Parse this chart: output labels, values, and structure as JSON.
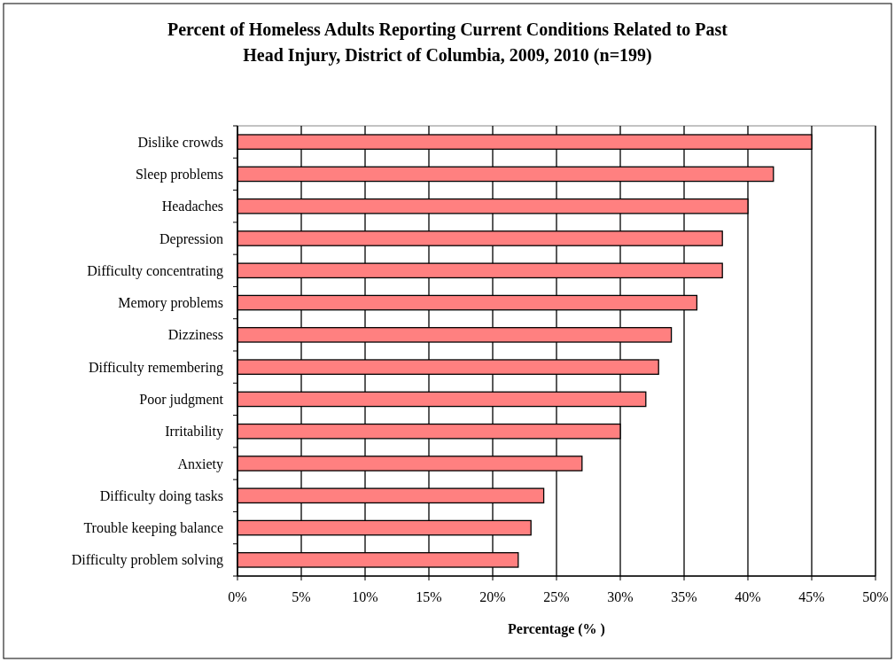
{
  "chart_data": {
    "type": "bar",
    "orientation": "horizontal",
    "title": "Percent of Homeless Adults Reporting Current Conditions Related to Past Head Injury, District of Columbia, 2009, 2010 (n=199)",
    "xlabel": "Percentage (% )",
    "categories": [
      "Dislike crowds",
      "Sleep problems",
      "Headaches",
      "Depression",
      "Difficulty concentrating",
      "Memory problems",
      "Dizziness",
      "Difficulty remembering",
      "Poor judgment",
      "Irritability",
      "Anxiety",
      "Difficulty doing tasks",
      "Trouble keeping balance",
      "Difficulty problem solving"
    ],
    "values": [
      45,
      42,
      40,
      38,
      38,
      36,
      34,
      33,
      32,
      30,
      27,
      24,
      23,
      22
    ],
    "color": "#ff8080",
    "xlim": [
      0,
      50
    ],
    "xticks": [
      {
        "value": 0,
        "label": "0%"
      },
      {
        "value": 5,
        "label": "5%"
      },
      {
        "value": 10,
        "label": "10%"
      },
      {
        "value": 15,
        "label": "15%"
      },
      {
        "value": 20,
        "label": "20%"
      },
      {
        "value": 25,
        "label": "25%"
      },
      {
        "value": 30,
        "label": "30%"
      },
      {
        "value": 35,
        "label": "35%"
      },
      {
        "value": 40,
        "label": "40%"
      },
      {
        "value": 45,
        "label": "45%"
      },
      {
        "value": 50,
        "label": "50%"
      }
    ],
    "grid": "x"
  }
}
